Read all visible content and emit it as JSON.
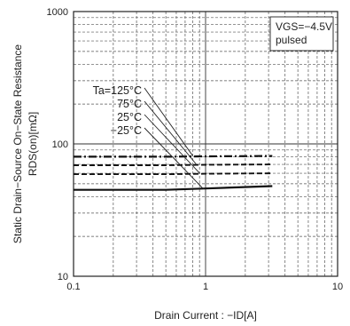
{
  "chart_data": {
    "type": "line",
    "title": "",
    "xlabel": "Drain Current : −ID[A]",
    "ylabel_line1": "Static Drain−Source On−State Resistance",
    "ylabel_line2": "RDS(on)[mΩ]",
    "xscale": "log",
    "yscale": "log",
    "xlim": [
      0.1,
      10
    ],
    "ylim": [
      10,
      1000
    ],
    "x_ticks": [
      0.1,
      1,
      10
    ],
    "x_tick_labels": [
      "0.1",
      "1",
      "10"
    ],
    "y_ticks": [
      10,
      100,
      1000
    ],
    "y_tick_labels": [
      "10",
      "100",
      "1000"
    ],
    "grid": true,
    "conditions": [
      "VGS=−4.5V",
      "pulsed"
    ],
    "series": [
      {
        "name": "Ta=125°C",
        "style": "dashdot",
        "x": [
          0.1,
          0.5,
          1,
          3.2
        ],
        "y": [
          80,
          80,
          80.5,
          81
        ]
      },
      {
        "name": "75°C",
        "style": "dashed",
        "x": [
          0.1,
          0.5,
          1,
          3.2
        ],
        "y": [
          69,
          69,
          69.5,
          70
        ]
      },
      {
        "name": "25°C",
        "style": "dashed",
        "x": [
          0.1,
          0.5,
          1,
          3.2
        ],
        "y": [
          59,
          59,
          59.5,
          60
        ]
      },
      {
        "name": "−25°C",
        "style": "solid",
        "x": [
          0.1,
          0.5,
          1,
          3.2
        ],
        "y": [
          45,
          45,
          46,
          48
        ]
      }
    ]
  }
}
